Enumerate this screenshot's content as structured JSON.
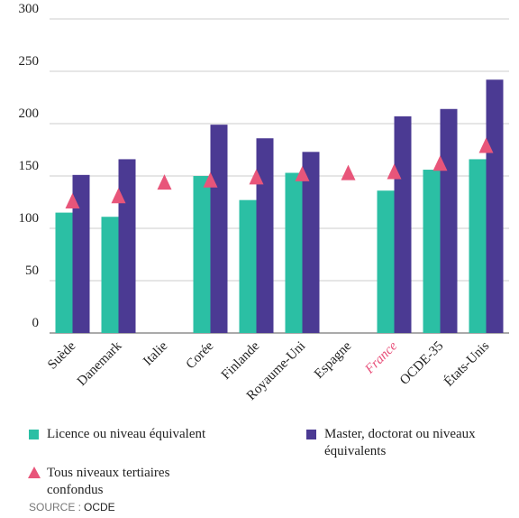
{
  "chart_data": {
    "type": "bar",
    "categories": [
      "Suède",
      "Danemark",
      "Italie",
      "Corée",
      "Finlande",
      "Royaume-Uni",
      "Espagne",
      "France",
      "OCDE-35",
      "États-Unis"
    ],
    "highlight_category": "France",
    "highlight_color": "#e8507a",
    "series": [
      {
        "name": "Licence ou niveau équivalent",
        "color": "#2bbfa4",
        "marker": "bar",
        "values": [
          115,
          111,
          null,
          150,
          127,
          153,
          null,
          136,
          156,
          166
        ]
      },
      {
        "name": "Master, doctorat ou niveaux équivalents",
        "color": "#4b3a93",
        "marker": "bar",
        "values": [
          151,
          166,
          null,
          199,
          186,
          173,
          null,
          207,
          214,
          242
        ]
      },
      {
        "name": "Tous niveaux tertiaires confondus",
        "color": "#e8557a",
        "marker": "triangle",
        "values": [
          125,
          130,
          143,
          145,
          148,
          151,
          152,
          153,
          161,
          178
        ]
      }
    ],
    "ylim": [
      0,
      300
    ],
    "yticks": [
      0,
      50,
      100,
      150,
      200,
      250,
      300
    ],
    "grid": true,
    "source_label": "SOURCE :",
    "source": "OCDE"
  }
}
